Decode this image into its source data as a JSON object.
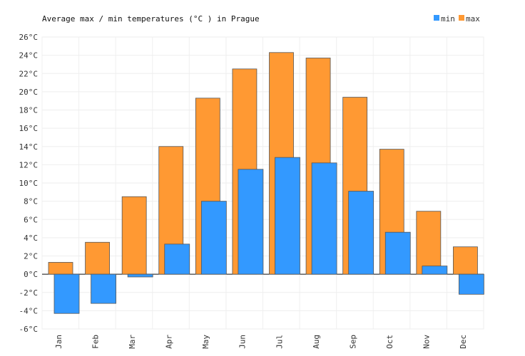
{
  "chart_data": {
    "type": "bar",
    "title": "Average max / min temperatures (°C ) in Prague",
    "categories": [
      "Jan",
      "Feb",
      "Mar",
      "Apr",
      "May",
      "Jun",
      "Jul",
      "Aug",
      "Sep",
      "Oct",
      "Nov",
      "Dec"
    ],
    "series": [
      {
        "name": "min",
        "color": "#3399ff",
        "values": [
          -4.3,
          -3.2,
          -0.3,
          3.3,
          8.0,
          11.5,
          12.8,
          12.2,
          9.1,
          4.6,
          0.9,
          -2.2
        ]
      },
      {
        "name": "max",
        "color": "#ff9933",
        "values": [
          1.3,
          3.5,
          8.5,
          14.0,
          19.3,
          22.5,
          24.3,
          23.7,
          19.4,
          13.7,
          6.9,
          3.0
        ]
      }
    ],
    "ylim": [
      -6,
      26
    ],
    "yticks": [
      "-6°C",
      "-4°C",
      "-2°C",
      "0°C",
      "2°C",
      "4°C",
      "6°C",
      "8°C",
      "10°C",
      "12°C",
      "14°C",
      "16°C",
      "18°C",
      "20°C",
      "22°C",
      "24°C",
      "26°C"
    ],
    "grid": true,
    "legend_position": "top-right"
  }
}
